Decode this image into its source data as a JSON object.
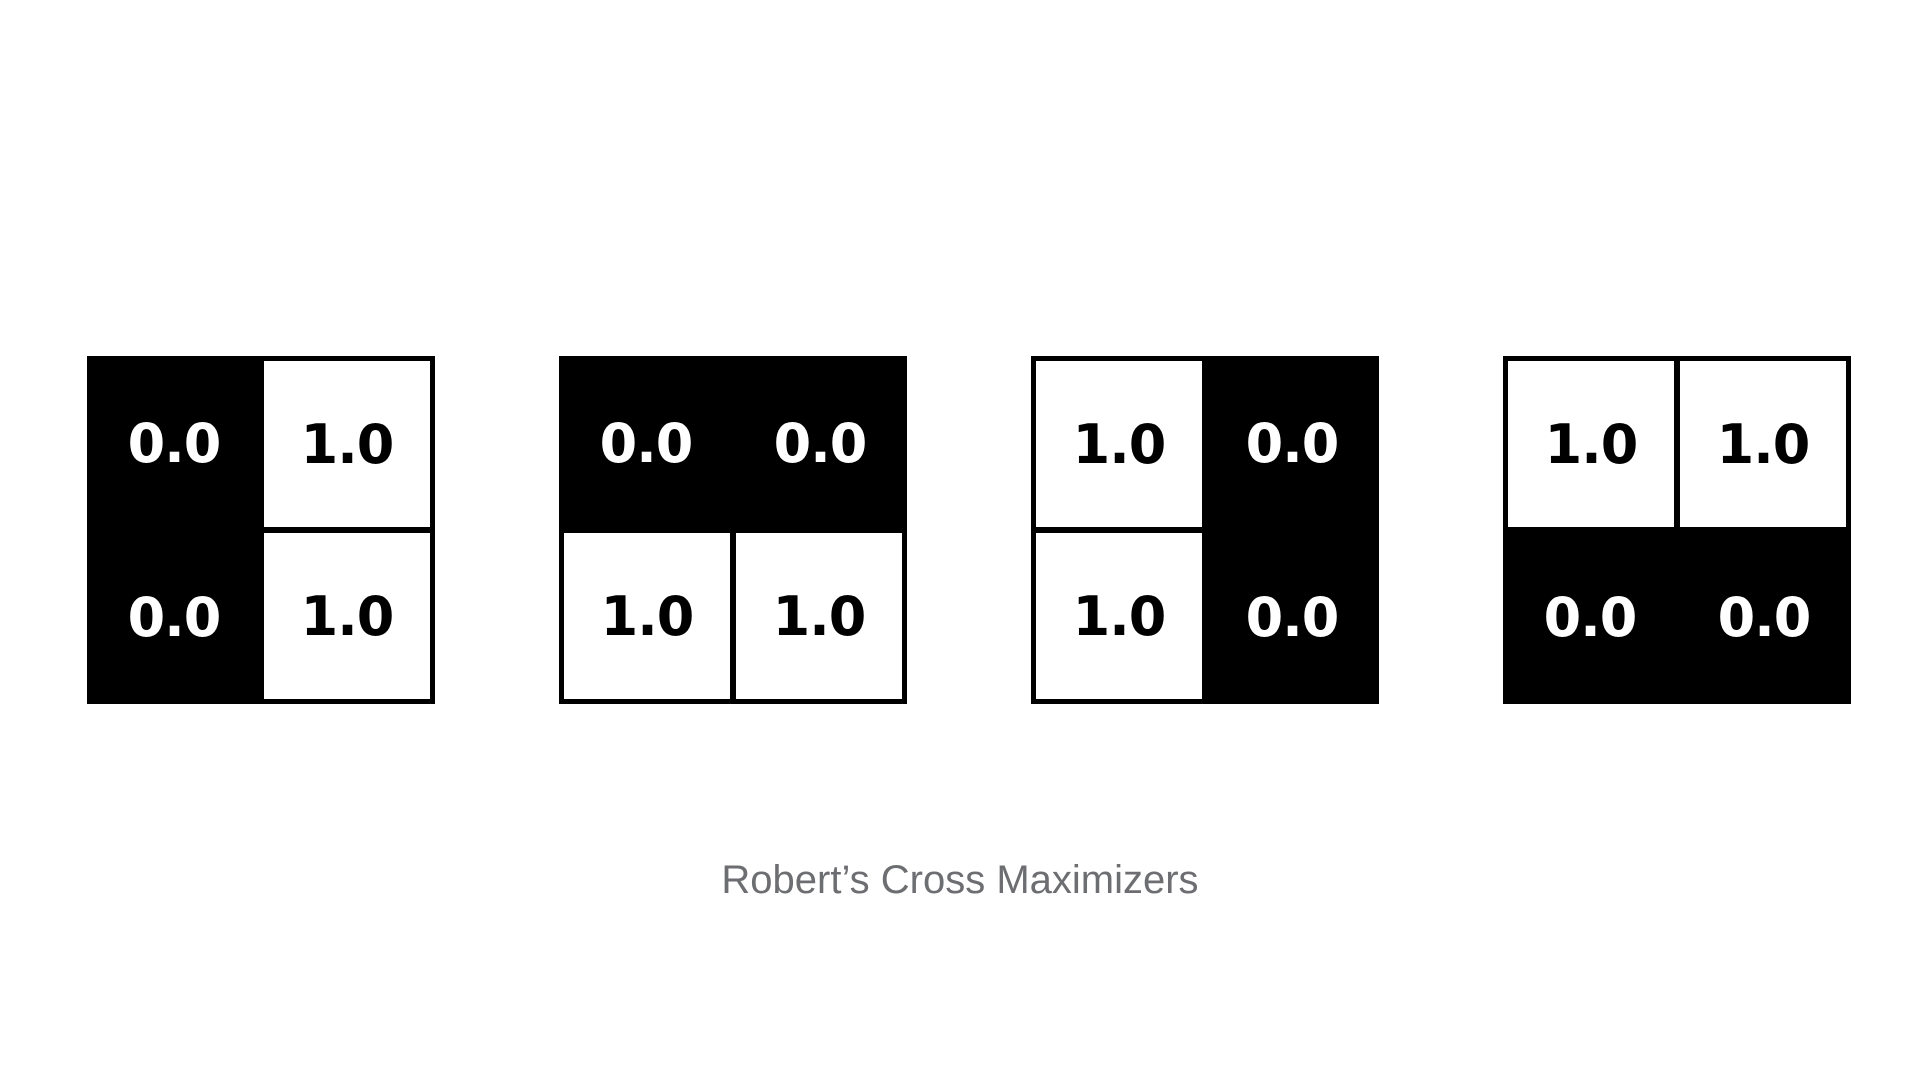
{
  "grids": [
    {
      "cells": [
        {
          "value": "0.0",
          "shade": "dark"
        },
        {
          "value": "1.0",
          "shade": "light"
        },
        {
          "value": "0.0",
          "shade": "dark"
        },
        {
          "value": "1.0",
          "shade": "light"
        }
      ]
    },
    {
      "cells": [
        {
          "value": "0.0",
          "shade": "dark"
        },
        {
          "value": "0.0",
          "shade": "dark"
        },
        {
          "value": "1.0",
          "shade": "light"
        },
        {
          "value": "1.0",
          "shade": "light"
        }
      ]
    },
    {
      "cells": [
        {
          "value": "1.0",
          "shade": "light"
        },
        {
          "value": "0.0",
          "shade": "dark"
        },
        {
          "value": "1.0",
          "shade": "light"
        },
        {
          "value": "0.0",
          "shade": "dark"
        }
      ]
    },
    {
      "cells": [
        {
          "value": "1.0",
          "shade": "light"
        },
        {
          "value": "1.0",
          "shade": "light"
        },
        {
          "value": "0.0",
          "shade": "dark"
        },
        {
          "value": "0.0",
          "shade": "dark"
        }
      ]
    }
  ],
  "caption": "Robert’s Cross Maximizers",
  "colors": {
    "dark": "#000000",
    "light": "#ffffff",
    "caption": "#6d6e71"
  }
}
